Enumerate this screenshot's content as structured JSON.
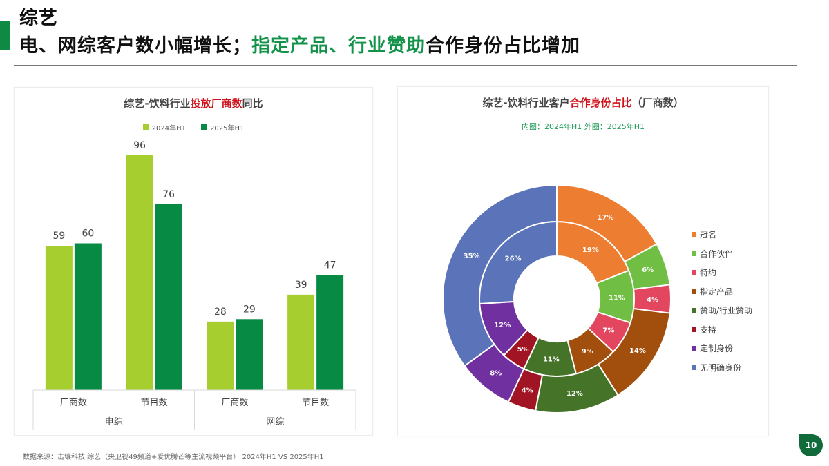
{
  "header": {
    "section": "综艺",
    "headline_parts": [
      {
        "text": "电、网综客户数小幅增长；",
        "highlight": false
      },
      {
        "text": "指定产品、行业赞助",
        "highlight": true
      },
      {
        "text": "合作身份占比增加",
        "highlight": false
      }
    ],
    "headline_1": "电、网综客户数小幅增长；",
    "headline_2": "指定产品、行业赞助",
    "headline_3": "合作身份占比增加"
  },
  "colors": {
    "accent_green": "#0f8a45",
    "highlight_green": "#13924a",
    "title_red": "#d0121b",
    "series_2024": "#a6ce2f",
    "series_2025": "#078a44"
  },
  "left_chart": {
    "title_prefix": "综艺-饮料行业",
    "title_highlight": "投放厂商数",
    "title_suffix": "同比"
  },
  "right_chart": {
    "title_prefix": "综艺-饮料行业客户",
    "title_highlight": "合作身份占比",
    "title_suffix": "（厂商数）",
    "subtitle": "内圈：2024年H1   外圈：2025年H1"
  },
  "chart_data": [
    {
      "type": "bar",
      "title": "综艺-饮料行业投放厂商数同比",
      "categories": [
        "厂商数",
        "节目数",
        "厂商数",
        "节目数"
      ],
      "groups": [
        {
          "label": "电综",
          "categories": [
            "厂商数",
            "节目数"
          ]
        },
        {
          "label": "网综",
          "categories": [
            "厂商数",
            "节目数"
          ]
        }
      ],
      "series": [
        {
          "name": "2024年H1",
          "color": "#a6ce2f",
          "values": [
            59,
            96,
            28,
            39
          ]
        },
        {
          "name": "2025年H1",
          "color": "#078a44",
          "values": [
            60,
            76,
            29,
            47
          ]
        }
      ],
      "legend_position": "top",
      "grid": false,
      "ylim": [
        0,
        100
      ],
      "xlabel": "",
      "ylabel": ""
    },
    {
      "type": "pie",
      "subtype": "nested-donut",
      "title": "综艺-饮料行业客户合作身份占比（厂商数）",
      "subtitle": "内圈：2024年H1   外圈：2025年H1",
      "categories": [
        "冠名",
        "合作伙伴",
        "特约",
        "指定产品",
        "赞助/行业赞助",
        "支持",
        "定制身份",
        "无明确身份"
      ],
      "colors": [
        "#ed7d31",
        "#70bf44",
        "#e2475f",
        "#a24f0e",
        "#457428",
        "#a01423",
        "#7030a0",
        "#5b73b9"
      ],
      "series": [
        {
          "name": "2024年H1",
          "ring": "inner",
          "values": [
            19,
            11,
            7,
            9,
            11,
            5,
            12,
            26
          ]
        },
        {
          "name": "2025年H1",
          "ring": "outer",
          "values": [
            17,
            6,
            4,
            14,
            12,
            4,
            8,
            35
          ]
        }
      ],
      "value_format": "percent",
      "legend_position": "right"
    }
  ],
  "footnote": "数据来源：击壤科技 综艺（央卫视49频道+爱优腾芒等主流视频平台） 2024年H1 VS 2025年H1",
  "page_number": "10"
}
